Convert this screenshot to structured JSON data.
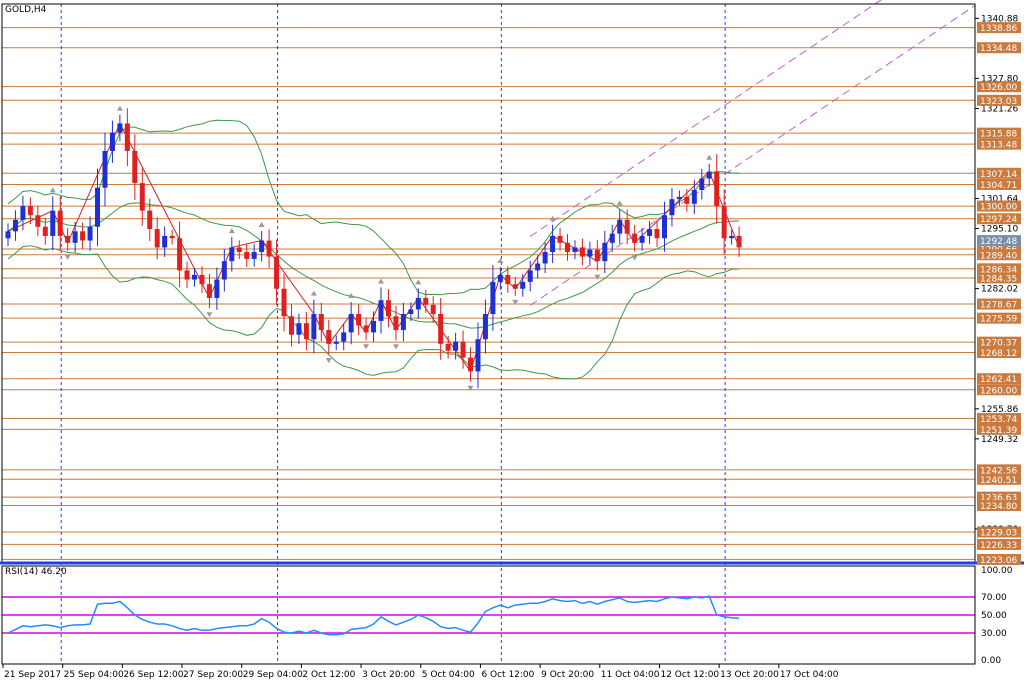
{
  "chart_data": {
    "type": "candlestick",
    "title": "GOLD,H4",
    "colors": {
      "up_candle": "#1f2fd6",
      "down_candle": "#e02020",
      "level_line": "#cc7a3a",
      "level_label_bg": "#c97a3e",
      "current_price_bg": "#7a8ea8",
      "channel": "#c060d0",
      "bollinger": "#3a9a4a",
      "zigzag": "#d02020",
      "rsi_line": "#1e90ff",
      "rsi_levels": "#e000e0",
      "separator": "#1e3cff",
      "axis_text": "#000000"
    },
    "price_axis": {
      "ylim": [
        1222.5,
        1344.0
      ],
      "ticks": [
        "1340.88",
        "1327.80",
        "1321.26",
        "1301.64",
        "1295.10",
        "1282.02",
        "1255.86",
        "1249.32",
        "1229.70"
      ],
      "tick_values": [
        1340.88,
        1327.8,
        1321.26,
        1301.64,
        1295.1,
        1282.02,
        1255.86,
        1249.32,
        1229.7
      ]
    },
    "level_labels": [
      "1338.86",
      "1334.48",
      "1326.00",
      "1323.03",
      "1315.88",
      "1313.48",
      "1307.14",
      "1304.71",
      "1300.00",
      "1297.24",
      "1290.66",
      "1289.40",
      "1286.34",
      "1284.35",
      "1278.67",
      "1275.59",
      "1270.37",
      "1268.12",
      "1262.41",
      "1260.00",
      "1253.74",
      "1251.39",
      "1242.56",
      "1240.51",
      "1236.63",
      "1234.80",
      "1229.03",
      "1226.33",
      "1223.06"
    ],
    "level_values": [
      1338.86,
      1334.48,
      1326.0,
      1323.03,
      1315.88,
      1313.48,
      1307.14,
      1304.71,
      1300.0,
      1297.24,
      1290.66,
      1289.4,
      1286.34,
      1284.35,
      1278.67,
      1275.59,
      1270.37,
      1268.12,
      1262.41,
      1260.0,
      1253.74,
      1251.39,
      1242.56,
      1240.51,
      1236.63,
      1234.8,
      1229.03,
      1226.33,
      1223.06
    ],
    "current_price": "1292.48",
    "current_price_value": 1292.48,
    "time_axis": {
      "labels": [
        "21 Sep 2017",
        "25 Sep 04:00",
        "26 Sep 12:00",
        "27 Sep 20:00",
        "29 Sep 04:00",
        "2 Oct 12:00",
        "3 Oct 20:00",
        "5 Oct 04:00",
        "6 Oct 12:00",
        "9 Oct 20:00",
        "11 Oct 04:00",
        "12 Oct 12:00",
        "13 Oct 20:00",
        "17 Oct 04:00"
      ],
      "label_bar_index": [
        0,
        8,
        16,
        24,
        32,
        40,
        48,
        56,
        64,
        72,
        80,
        88,
        96,
        104
      ],
      "week_separator_bar_index": [
        7,
        36,
        66,
        96
      ]
    },
    "close": [
      1294.5,
      1297.0,
      1300.0,
      1298.0,
      1295.5,
      1293.5,
      1299.0,
      1293.5,
      1292.0,
      1294.5,
      1292.5,
      1295.5,
      1304.0,
      1312.0,
      1316.0,
      1318.0,
      1312.0,
      1305.0,
      1299.0,
      1295.0,
      1291.0,
      1293.5,
      1293.0,
      1286.0,
      1284.0,
      1285.0,
      1283.0,
      1280.0,
      1284.0,
      1288.0,
      1291.0,
      1290.0,
      1288.5,
      1290.0,
      1292.5,
      1289.0,
      1282.0,
      1276.0,
      1272.0,
      1274.5,
      1271.0,
      1276.5,
      1273.0,
      1270.0,
      1270.5,
      1272.5,
      1276.5,
      1274.0,
      1272.5,
      1275.0,
      1279.5,
      1276.0,
      1273.0,
      1276.5,
      1277.5,
      1280.0,
      1278.5,
      1276.5,
      1270.0,
      1268.5,
      1270.5,
      1267.0,
      1264.0,
      1271.0,
      1276.5,
      1283.5,
      1285.0,
      1283.0,
      1282.0,
      1283.5,
      1286.0,
      1287.5,
      1290.0,
      1293.5,
      1292.0,
      1290.0,
      1291.0,
      1289.0,
      1290.5,
      1288.0,
      1292.0,
      1294.0,
      1297.0,
      1294.0,
      1292.0,
      1293.5,
      1295.0,
      1293.0,
      1298.0,
      1301.5,
      1302.0,
      1300.5,
      1303.5,
      1306.0,
      1307.5,
      1300.0,
      1293.0,
      1293.5,
      1291.0
    ],
    "rsi": {
      "label": "RSI(14) 46.20",
      "ticks": [
        "100.00",
        "70.00",
        "50.00",
        "30.00",
        "0.00"
      ],
      "levels": [
        70,
        50,
        30
      ],
      "values": [
        30,
        34,
        38,
        37,
        38,
        39,
        38,
        36,
        38,
        39,
        39,
        40,
        62,
        63,
        63,
        65,
        58,
        50,
        45,
        42,
        40,
        40,
        38,
        35,
        33,
        35,
        33,
        33,
        35,
        36,
        37,
        38,
        38,
        40,
        46,
        42,
        35,
        31,
        30,
        32,
        30,
        33,
        30,
        28,
        28,
        29,
        34,
        35,
        36,
        40,
        48,
        43,
        39,
        42,
        45,
        50,
        47,
        43,
        37,
        35,
        36,
        33,
        31,
        41,
        54,
        58,
        61,
        58,
        61,
        62,
        63,
        63,
        65,
        68,
        66,
        65,
        66,
        63,
        65,
        62,
        65,
        67,
        69,
        65,
        64,
        65,
        66,
        65,
        68,
        70,
        69,
        68,
        70,
        69,
        71,
        50,
        48,
        47,
        46.2
      ]
    }
  }
}
